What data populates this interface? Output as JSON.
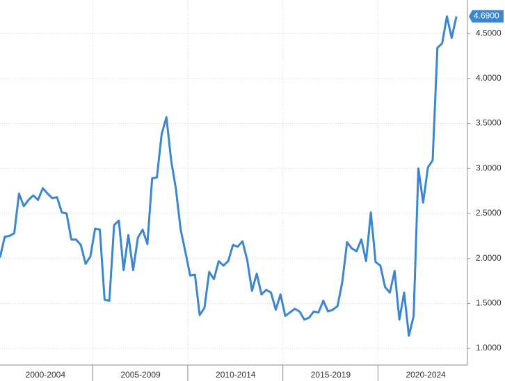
{
  "chart_data": {
    "type": "line",
    "categories": [
      null,
      null,
      null,
      null,
      null,
      null,
      null,
      null,
      null,
      null,
      "2000-2004",
      null,
      null,
      null,
      null,
      null,
      null,
      null,
      null,
      null,
      null,
      null,
      null,
      null,
      null,
      null,
      null,
      null,
      null,
      null,
      "2005-2009",
      null,
      null,
      null,
      null,
      null,
      null,
      null,
      null,
      null,
      null,
      null,
      null,
      null,
      null,
      null,
      null,
      null,
      null,
      null,
      "2010-2014",
      null,
      null,
      null,
      null,
      null,
      null,
      null,
      null,
      null,
      null,
      null,
      null,
      null,
      null,
      null,
      null,
      null,
      null,
      null,
      "2015-2019",
      null,
      null,
      null,
      null,
      null,
      null,
      null,
      null,
      null,
      null,
      null,
      null,
      null,
      null,
      null,
      null,
      null,
      null,
      null,
      "2020-2024",
      null,
      null,
      null,
      null,
      null,
      null
    ],
    "values": [
      2.01,
      2.24,
      2.25,
      2.28,
      2.72,
      2.58,
      2.65,
      2.7,
      2.65,
      2.78,
      2.72,
      2.67,
      2.68,
      2.51,
      2.5,
      2.21,
      2.21,
      2.15,
      1.94,
      2.02,
      2.33,
      2.32,
      1.54,
      1.53,
      2.37,
      2.42,
      1.87,
      2.26,
      1.87,
      2.23,
      2.32,
      2.16,
      2.89,
      2.9,
      3.38,
      3.57,
      3.09,
      2.77,
      2.32,
      2.07,
      1.81,
      1.82,
      1.37,
      1.45,
      1.85,
      1.77,
      1.97,
      1.92,
      1.97,
      2.15,
      2.13,
      2.19,
      1.98,
      1.64,
      1.83,
      1.6,
      1.65,
      1.62,
      1.43,
      1.6,
      1.36,
      1.4,
      1.44,
      1.41,
      1.32,
      1.34,
      1.41,
      1.4,
      1.53,
      1.41,
      1.43,
      1.47,
      1.74,
      2.18,
      2.11,
      2.08,
      2.21,
      1.97,
      2.51,
      1.96,
      1.92,
      1.68,
      1.62,
      1.86,
      1.32,
      1.62,
      1.14,
      1.36,
      3.0,
      2.62,
      3.01,
      3.09,
      4.34,
      4.39,
      4.69,
      4.45,
      4.69
    ],
    "value_labels": [
      null,
      null,
      null,
      null,
      null,
      null,
      null,
      null,
      null,
      null,
      null,
      null,
      null,
      null,
      null,
      null,
      null,
      null,
      null,
      null,
      null,
      null,
      null,
      null,
      null,
      null,
      null,
      null,
      null,
      null,
      null,
      null,
      null,
      null,
      null,
      null,
      null,
      null,
      null,
      null,
      null,
      null,
      null,
      null,
      null,
      null,
      null,
      null,
      null,
      null,
      null,
      null,
      null,
      null,
      null,
      null,
      null,
      null,
      null,
      null,
      null,
      null,
      null,
      null,
      null,
      null,
      null,
      null,
      null,
      null,
      null,
      null,
      null,
      null,
      null,
      null,
      null,
      null,
      null,
      null,
      null,
      null,
      null,
      null,
      null,
      null,
      null,
      null,
      null,
      null,
      null,
      null,
      null,
      null,
      null,
      null,
      "4.6900"
    ],
    "color": "#3a86d0",
    "ylim": [
      0.815,
      4.872
    ],
    "yticks": [
      {
        "value": 1,
        "label": "1.0000"
      },
      {
        "value": 1.5,
        "label": "1.5000"
      },
      {
        "value": 2,
        "label": "2.0000"
      },
      {
        "value": 2.5,
        "label": "2.5000"
      },
      {
        "value": 3,
        "label": "3.0000"
      },
      {
        "value": 3.5,
        "label": "3.5000"
      },
      {
        "value": 4,
        "label": "4.0000"
      },
      {
        "value": 4.5,
        "label": "4.5000"
      }
    ],
    "grid": true
  }
}
